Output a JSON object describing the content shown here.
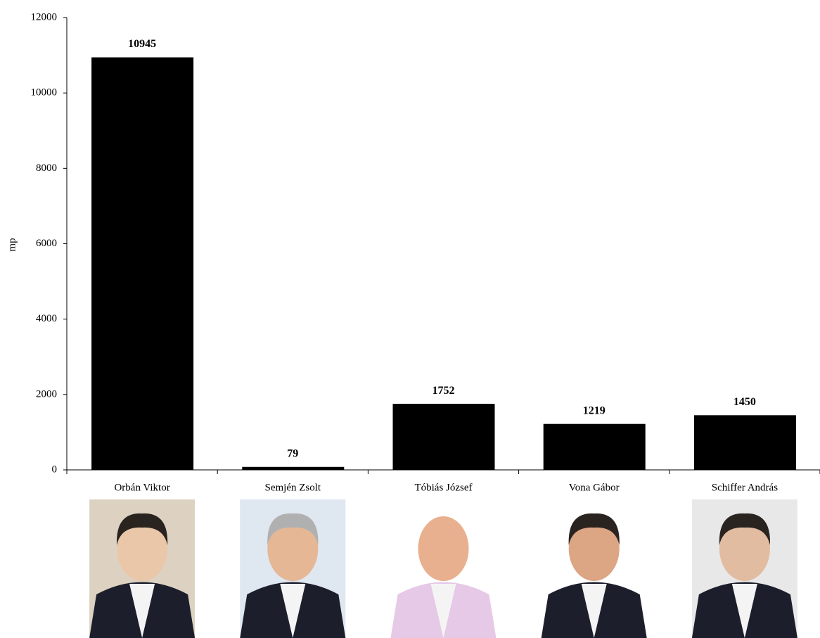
{
  "chart_data": {
    "type": "bar",
    "y_label": "mp",
    "categories": [
      "Orbán Viktor",
      "Semjén Zsolt",
      "Tóbiás József",
      "Vona Gábor",
      "Schiffer András"
    ],
    "values": [
      10945,
      79,
      1752,
      1219,
      1450
    ],
    "color": "#000000",
    "ylim": [
      0,
      12000
    ],
    "yticks": [
      0,
      2000,
      4000,
      6000,
      8000,
      10000,
      12000
    ],
    "grid": false
  }
}
